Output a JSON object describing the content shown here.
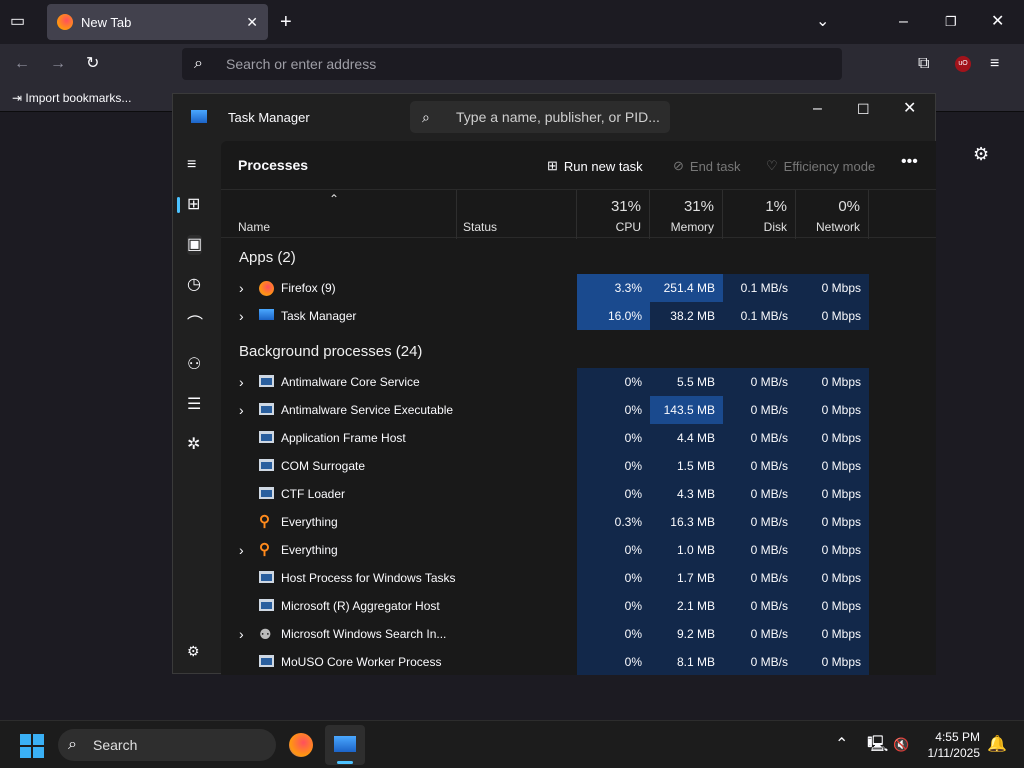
{
  "browser": {
    "tab_title": "New Tab",
    "url_placeholder": "Search or enter address",
    "bookmark": "Import bookmarks..."
  },
  "taskmanager": {
    "title": "Task Manager",
    "search_placeholder": "Type a name, publisher, or PID...",
    "page_title": "Processes",
    "run_new_task": "Run new task",
    "end_task": "End task",
    "efficiency_mode": "Efficiency mode",
    "columns": [
      {
        "label": "Name"
      },
      {
        "label": "Status"
      },
      {
        "label": "CPU",
        "pct": "31%"
      },
      {
        "label": "Memory",
        "pct": "31%"
      },
      {
        "label": "Disk",
        "pct": "1%"
      },
      {
        "label": "Network",
        "pct": "0%"
      }
    ],
    "groups": [
      {
        "label": "Apps (2)",
        "rows": [
          {
            "name": "Firefox (9)",
            "icon": "firefox",
            "expand": true,
            "cpu": "3.3%",
            "mem": "251.4 MB",
            "disk": "0.1 MB/s",
            "net": "0 Mbps",
            "hot": [
              "cpu",
              "mem"
            ]
          },
          {
            "name": "Task Manager",
            "icon": "taskmgr",
            "expand": true,
            "cpu": "16.0%",
            "mem": "38.2 MB",
            "disk": "0.1 MB/s",
            "net": "0 Mbps",
            "hot": [
              "cpu"
            ]
          }
        ]
      },
      {
        "label": "Background processes (24)",
        "rows": [
          {
            "name": "Antimalware Core Service",
            "icon": "window",
            "expand": true,
            "cpu": "0%",
            "mem": "5.5 MB",
            "disk": "0 MB/s",
            "net": "0 Mbps",
            "hot": []
          },
          {
            "name": "Antimalware Service Executable",
            "icon": "window",
            "expand": true,
            "cpu": "0%",
            "mem": "143.5 MB",
            "disk": "0 MB/s",
            "net": "0 Mbps",
            "hot": [
              "mem"
            ]
          },
          {
            "name": "Application Frame Host",
            "icon": "window",
            "expand": false,
            "cpu": "0%",
            "mem": "4.4 MB",
            "disk": "0 MB/s",
            "net": "0 Mbps",
            "hot": []
          },
          {
            "name": "COM Surrogate",
            "icon": "window",
            "expand": false,
            "cpu": "0%",
            "mem": "1.5 MB",
            "disk": "0 MB/s",
            "net": "0 Mbps",
            "hot": []
          },
          {
            "name": "CTF Loader",
            "icon": "window",
            "expand": false,
            "cpu": "0%",
            "mem": "4.3 MB",
            "disk": "0 MB/s",
            "net": "0 Mbps",
            "hot": []
          },
          {
            "name": "Everything",
            "icon": "search",
            "expand": false,
            "cpu": "0.3%",
            "mem": "16.3 MB",
            "disk": "0 MB/s",
            "net": "0 Mbps",
            "hot": []
          },
          {
            "name": "Everything",
            "icon": "search",
            "expand": true,
            "cpu": "0%",
            "mem": "1.0 MB",
            "disk": "0 MB/s",
            "net": "0 Mbps",
            "hot": []
          },
          {
            "name": "Host Process for Windows Tasks",
            "icon": "window",
            "expand": false,
            "cpu": "0%",
            "mem": "1.7 MB",
            "disk": "0 MB/s",
            "net": "0 Mbps",
            "hot": []
          },
          {
            "name": "Microsoft (R) Aggregator Host",
            "icon": "window",
            "expand": false,
            "cpu": "0%",
            "mem": "2.1 MB",
            "disk": "0 MB/s",
            "net": "0 Mbps",
            "hot": []
          },
          {
            "name": "Microsoft Windows Search In...",
            "icon": "person",
            "expand": true,
            "cpu": "0%",
            "mem": "9.2 MB",
            "disk": "0 MB/s",
            "net": "0 Mbps",
            "hot": []
          },
          {
            "name": "MoUSO Core Worker Process",
            "icon": "window",
            "expand": false,
            "cpu": "0%",
            "mem": "8.1 MB",
            "disk": "0 MB/s",
            "net": "0 Mbps",
            "hot": []
          }
        ]
      }
    ]
  },
  "taskbar": {
    "search": "Search",
    "time": "4:55 PM",
    "date": "1/11/2025"
  },
  "colors": {
    "cell": "#12284a",
    "hot": "#1a4a8e",
    "accent": "#4cc2ff"
  }
}
